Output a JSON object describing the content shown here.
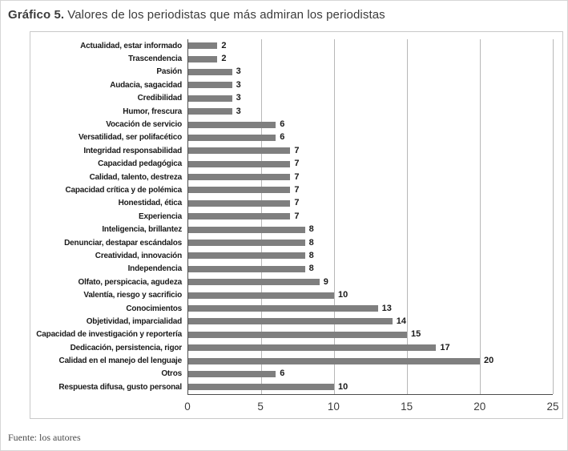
{
  "title": {
    "prefix": "Gráfico 5.",
    "text": "Valores de los periodistas que más admiran los periodistas"
  },
  "source": "Fuente: los autores",
  "chart_data": {
    "type": "bar",
    "orientation": "horizontal",
    "title": "Gráfico 5. Valores de los periodistas que más admiran los periodistas",
    "xlabel": "",
    "ylabel": "",
    "xlim": [
      0,
      25
    ],
    "xticks": [
      0,
      5,
      10,
      15,
      20,
      25
    ],
    "grid": true,
    "legend": false,
    "data_labels": true,
    "bar_color": "#7f7f7f",
    "categories": [
      "Actualidad, estar informado",
      "Trascendencia",
      "Pasión",
      "Audacia, sagacidad",
      "Credibilidad",
      "Humor, frescura",
      "Vocación de servicio",
      "Versatilidad, ser polifacético",
      "Integridad responsabilidad",
      "Capacidad pedagógica",
      "Calidad, talento, destreza",
      "Capacidad crítica y de polémica",
      "Honestidad, ética",
      "Experiencia",
      "Inteligencia, brillantez",
      "Denunciar, destapar escándalos",
      "Creatividad, innovación",
      "Independencia",
      "Olfato, perspicacia, agudeza",
      "Valentía, riesgo y sacrificio",
      "Conocimientos",
      "Objetividad, imparcialidad",
      "Capacidad de investigación y reportería",
      "Dedicación, persistencia, rigor",
      "Calidad en el manejo del lenguaje",
      "Otros",
      "Respuesta difusa, gusto personal"
    ],
    "values": [
      2,
      2,
      3,
      3,
      3,
      3,
      6,
      6,
      7,
      7,
      7,
      7,
      7,
      7,
      8,
      8,
      8,
      8,
      9,
      10,
      13,
      14,
      15,
      17,
      20,
      6,
      10
    ]
  }
}
